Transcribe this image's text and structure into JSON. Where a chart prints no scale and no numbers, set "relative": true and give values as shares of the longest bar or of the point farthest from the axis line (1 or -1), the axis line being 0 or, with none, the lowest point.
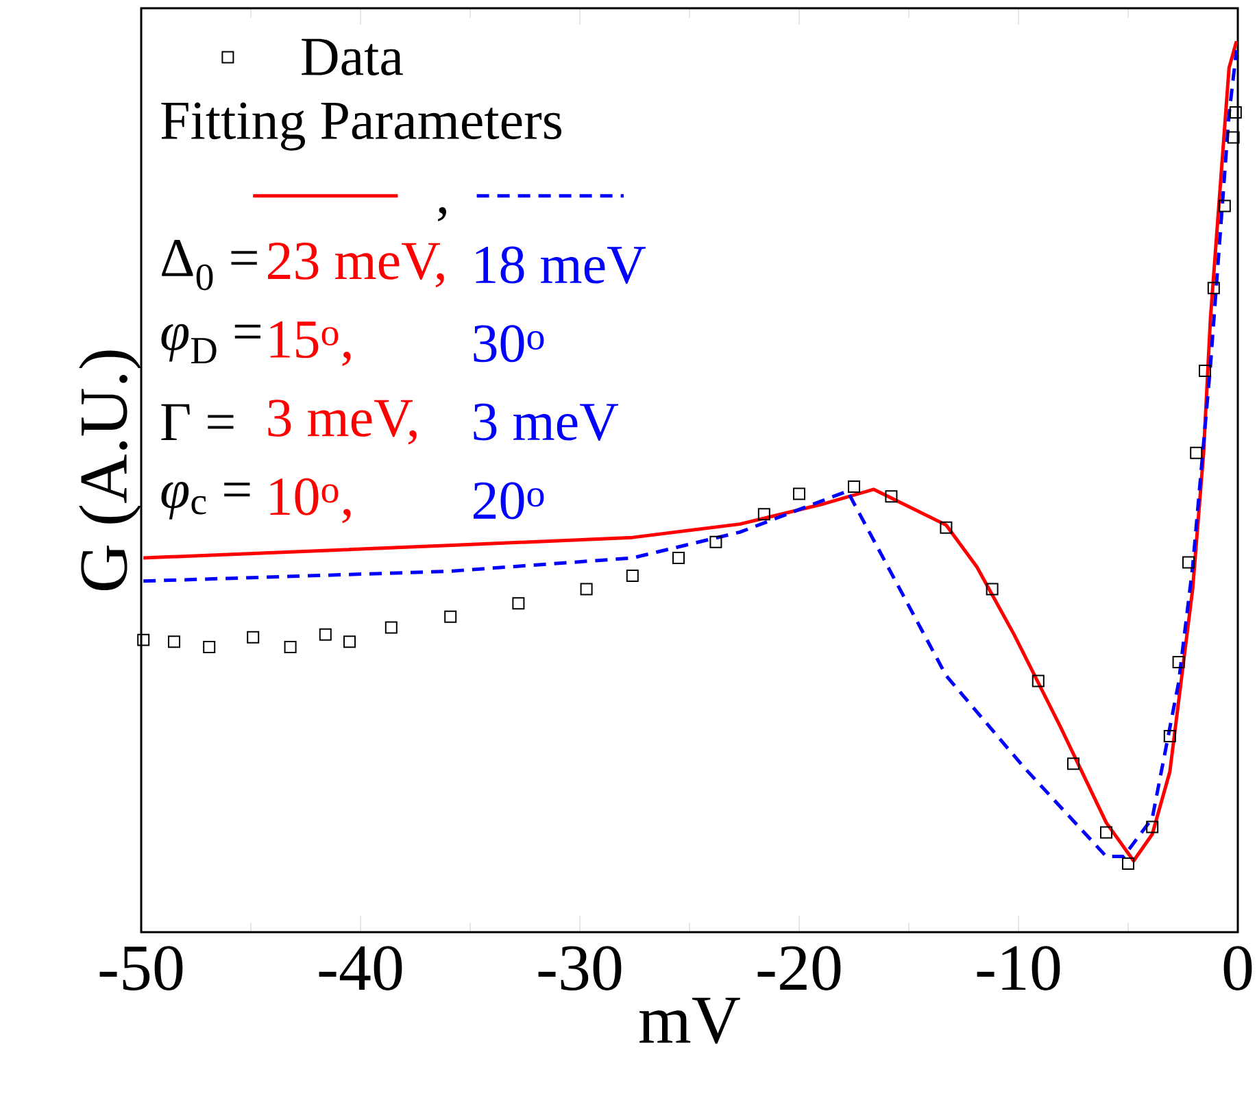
{
  "chart_data": {
    "type": "scatter",
    "xlabel": "mV",
    "ylabel": "G (A.U.)",
    "relative": true,
    "xlim": [
      -50,
      0
    ],
    "xticks": [
      -50,
      -40,
      -30,
      -20,
      -10,
      0
    ],
    "legend": "top left",
    "annotations": [
      ",",
      "Fitting Parameters",
      "Δ$_{0}$ =",
      "23 meV,",
      "18 meV",
      "*φ*$_{D}$ =",
      "15$^{o}$,",
      "30$^{o}$",
      "Γ  =",
      "3 meV,",
      "3 meV",
      "*φ*$_{c}$ =",
      "10$^{o}$,",
      "20$^{o}$"
    ],
    "series": [
      {
        "name": "Data",
        "marker": "square",
        "color": "#000000",
        "x": [
          -49.9,
          -48.5,
          -46.9,
          -44.9,
          -43.2,
          -41.6,
          -40.5,
          -38.6,
          -35.9,
          -32.8,
          -29.7,
          -27.6,
          -25.5,
          -23.8,
          -21.6,
          -20,
          -17.5,
          -15.8,
          -13.3,
          -11.2,
          -9.1,
          -7.5,
          -6,
          -5,
          -3.9,
          -3.1,
          -2.7,
          -2.25,
          -1.9,
          -1.5,
          -1.1,
          -0.6,
          -0.2,
          -0.1
        ],
        "values": [
          0.328,
          0.326,
          0.32,
          0.331,
          0.32,
          0.334,
          0.326,
          0.342,
          0.354,
          0.369,
          0.385,
          0.4,
          0.42,
          0.438,
          0.469,
          0.492,
          0.5,
          0.489,
          0.454,
          0.385,
          0.282,
          0.189,
          0.112,
          0.077,
          0.118,
          0.22,
          0.303,
          0.415,
          0.538,
          0.63,
          0.723,
          0.815,
          0.892,
          0.92
        ]
      },
      {
        "type": "line",
        "marker": "none",
        "line_style": "solid",
        "color": "#ff0000",
        "x": [
          -49.9,
          -36,
          -27.6,
          -22.7,
          -19,
          -16.6,
          -13.3,
          -11.9,
          -10.2,
          -8.1,
          -6,
          -4.75,
          -3.9,
          -3.1,
          -2.06,
          -1.56,
          -1.25,
          -0.4,
          -0.06
        ],
        "values": [
          0.42,
          0.434,
          0.443,
          0.458,
          0.48,
          0.497,
          0.457,
          0.41,
          0.334,
          0.231,
          0.123,
          0.08,
          0.11,
          0.18,
          0.385,
          0.538,
          0.688,
          0.97,
          1.0
        ]
      },
      {
        "type": "line",
        "marker": "none",
        "line_style": "dashed",
        "color": "#0000ff",
        "x": [
          -49.9,
          -36,
          -27.6,
          -22.7,
          -17.8,
          -13.3,
          -9.75,
          -6,
          -5.2,
          -3.9,
          -2.7,
          -2.06,
          -1.25,
          -0.4,
          -0.06
        ],
        "values": [
          0.394,
          0.405,
          0.42,
          0.449,
          0.495,
          0.288,
          0.185,
          0.085,
          0.085,
          0.128,
          0.28,
          0.41,
          0.635,
          0.918,
          0.99
        ]
      }
    ]
  }
}
